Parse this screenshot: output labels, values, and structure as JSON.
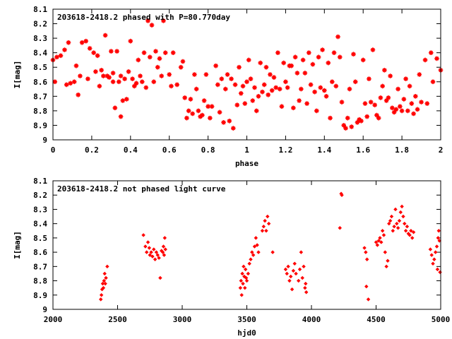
{
  "chart_data": [
    {
      "type": "scatter",
      "title": "203618-2418.2 phased with P=80.770day",
      "xlabel": "phase",
      "ylabel": "I[mag]",
      "xlim": [
        0,
        2
      ],
      "ylim": [
        9,
        8.1
      ],
      "y_inverted": true,
      "marker": "star",
      "marker_color": "#ff0000",
      "x_ticks": [
        "0",
        "0.2",
        "0.4",
        "0.6",
        "0.8",
        "1",
        "1.2",
        "1.4",
        "1.6",
        "1.8",
        "2"
      ],
      "y_ticks": [
        "8.1",
        "8.2",
        "8.3",
        "8.4",
        "8.5",
        "8.6",
        "8.7",
        "8.8",
        "8.9",
        "9"
      ],
      "points": [
        [
          0.0,
          8.45
        ],
        [
          0.01,
          8.6
        ],
        [
          0.02,
          8.43
        ],
        [
          0.04,
          8.42
        ],
        [
          0.06,
          8.38
        ],
        [
          0.07,
          8.62
        ],
        [
          0.08,
          8.33
        ],
        [
          0.09,
          8.61
        ],
        [
          0.11,
          8.6
        ],
        [
          0.12,
          8.49
        ],
        [
          0.13,
          8.69
        ],
        [
          0.14,
          8.56
        ],
        [
          0.15,
          8.33
        ],
        [
          0.17,
          8.32
        ],
        [
          0.18,
          8.58
        ],
        [
          0.19,
          8.37
        ],
        [
          0.21,
          8.4
        ],
        [
          0.22,
          8.53
        ],
        [
          0.23,
          8.42
        ],
        [
          0.24,
          8.63
        ],
        [
          0.25,
          8.52
        ],
        [
          0.26,
          8.56
        ],
        [
          0.27,
          8.28
        ],
        [
          0.28,
          8.56
        ],
        [
          0.29,
          8.57
        ],
        [
          0.3,
          8.39
        ],
        [
          0.31,
          8.54
        ],
        [
          0.31,
          8.6
        ],
        [
          0.32,
          8.78
        ],
        [
          0.33,
          8.39
        ],
        [
          0.34,
          8.6
        ],
        [
          0.35,
          8.84
        ],
        [
          0.35,
          8.56
        ],
        [
          0.36,
          8.73
        ],
        [
          0.37,
          8.58
        ],
        [
          0.38,
          8.72
        ],
        [
          0.39,
          8.53
        ],
        [
          0.4,
          8.32
        ],
        [
          0.41,
          8.58
        ],
        [
          0.42,
          8.63
        ],
        [
          0.43,
          8.61
        ],
        [
          0.44,
          8.45
        ],
        [
          0.45,
          8.56
        ],
        [
          0.46,
          8.6
        ],
        [
          0.47,
          8.4
        ],
        [
          0.48,
          8.64
        ],
        [
          0.49,
          8.18
        ],
        [
          0.5,
          8.43
        ],
        [
          0.51,
          8.21
        ],
        [
          0.52,
          8.6
        ],
        [
          0.53,
          8.39
        ],
        [
          0.54,
          8.5
        ],
        [
          0.55,
          8.44
        ],
        [
          0.56,
          8.56
        ],
        [
          0.57,
          8.18
        ],
        [
          0.58,
          8.4
        ],
        [
          0.6,
          8.55
        ],
        [
          0.61,
          8.63
        ],
        [
          0.62,
          8.4
        ],
        [
          0.64,
          8.62
        ],
        [
          0.66,
          8.5
        ],
        [
          0.67,
          8.46
        ],
        [
          0.68,
          8.71
        ],
        [
          0.69,
          8.85
        ],
        [
          0.7,
          8.8
        ],
        [
          0.71,
          8.72
        ],
        [
          0.72,
          8.82
        ],
        [
          0.73,
          8.55
        ],
        [
          0.74,
          8.65
        ],
        [
          0.75,
          8.8
        ],
        [
          0.76,
          8.84
        ],
        [
          0.77,
          8.83
        ],
        [
          0.78,
          8.73
        ],
        [
          0.79,
          8.55
        ],
        [
          0.8,
          8.77
        ],
        [
          0.81,
          8.85
        ],
        [
          0.82,
          8.77
        ],
        [
          0.84,
          8.49
        ],
        [
          0.85,
          8.62
        ],
        [
          0.86,
          8.81
        ],
        [
          0.87,
          8.58
        ],
        [
          0.88,
          8.88
        ],
        [
          0.89,
          8.65
        ],
        [
          0.9,
          8.55
        ],
        [
          0.91,
          8.87
        ],
        [
          0.92,
          8.58
        ],
        [
          0.93,
          8.92
        ],
        [
          0.94,
          8.62
        ],
        [
          0.95,
          8.76
        ],
        [
          0.96,
          8.5
        ],
        [
          0.97,
          8.68
        ],
        [
          0.98,
          8.63
        ],
        [
          0.99,
          8.75
        ],
        [
          1.0,
          8.6
        ],
        [
          1.01,
          8.45
        ],
        [
          1.02,
          8.58
        ],
        [
          1.03,
          8.73
        ],
        [
          1.04,
          8.64
        ],
        [
          1.05,
          8.8
        ],
        [
          1.06,
          8.7
        ],
        [
          1.07,
          8.47
        ],
        [
          1.08,
          8.67
        ],
        [
          1.09,
          8.62
        ],
        [
          1.1,
          8.5
        ],
        [
          1.11,
          8.69
        ],
        [
          1.12,
          8.55
        ],
        [
          1.13,
          8.66
        ],
        [
          1.14,
          8.57
        ],
        [
          1.15,
          8.64
        ],
        [
          1.16,
          8.4
        ],
        [
          1.17,
          8.65
        ],
        [
          1.18,
          8.77
        ],
        [
          1.19,
          8.47
        ],
        [
          1.2,
          8.6
        ],
        [
          1.21,
          8.64
        ],
        [
          1.22,
          8.49
        ],
        [
          1.23,
          8.49
        ],
        [
          1.24,
          8.78
        ],
        [
          1.25,
          8.43
        ],
        [
          1.26,
          8.54
        ],
        [
          1.27,
          8.73
        ],
        [
          1.28,
          8.65
        ],
        [
          1.29,
          8.45
        ],
        [
          1.3,
          8.54
        ],
        [
          1.31,
          8.75
        ],
        [
          1.32,
          8.4
        ],
        [
          1.33,
          8.62
        ],
        [
          1.34,
          8.48
        ],
        [
          1.35,
          8.67
        ],
        [
          1.36,
          8.8
        ],
        [
          1.37,
          8.43
        ],
        [
          1.38,
          8.64
        ],
        [
          1.39,
          8.38
        ],
        [
          1.4,
          8.66
        ],
        [
          1.41,
          8.7
        ],
        [
          1.42,
          8.47
        ],
        [
          1.43,
          8.85
        ],
        [
          1.44,
          8.6
        ],
        [
          1.45,
          8.4
        ],
        [
          1.46,
          8.63
        ],
        [
          1.47,
          8.29
        ],
        [
          1.48,
          8.43
        ],
        [
          1.49,
          8.74
        ],
        [
          1.5,
          8.9
        ],
        [
          1.51,
          8.92
        ],
        [
          1.52,
          8.85
        ],
        [
          1.53,
          8.65
        ],
        [
          1.54,
          8.91
        ],
        [
          1.55,
          8.41
        ],
        [
          1.56,
          8.6
        ],
        [
          1.57,
          8.88
        ],
        [
          1.58,
          8.86
        ],
        [
          1.59,
          8.87
        ],
        [
          1.6,
          8.45
        ],
        [
          1.61,
          8.75
        ],
        [
          1.62,
          8.84
        ],
        [
          1.63,
          8.58
        ],
        [
          1.64,
          8.74
        ],
        [
          1.65,
          8.38
        ],
        [
          1.66,
          8.76
        ],
        [
          1.67,
          8.83
        ],
        [
          1.68,
          8.85
        ],
        [
          1.69,
          8.71
        ],
        [
          1.7,
          8.63
        ],
        [
          1.71,
          8.52
        ],
        [
          1.72,
          8.73
        ],
        [
          1.73,
          8.71
        ],
        [
          1.74,
          8.56
        ],
        [
          1.75,
          8.78
        ],
        [
          1.76,
          8.81
        ],
        [
          1.77,
          8.79
        ],
        [
          1.78,
          8.65
        ],
        [
          1.79,
          8.77
        ],
        [
          1.8,
          8.8
        ],
        [
          1.81,
          8.72
        ],
        [
          1.82,
          8.58
        ],
        [
          1.83,
          8.8
        ],
        [
          1.84,
          8.63
        ],
        [
          1.85,
          8.75
        ],
        [
          1.86,
          8.82
        ],
        [
          1.87,
          8.7
        ],
        [
          1.88,
          8.79
        ],
        [
          1.89,
          8.55
        ],
        [
          1.9,
          8.74
        ],
        [
          1.92,
          8.45
        ],
        [
          1.93,
          8.75
        ],
        [
          1.95,
          8.4
        ],
        [
          1.96,
          8.6
        ],
        [
          1.98,
          8.44
        ],
        [
          2.0,
          8.52
        ]
      ]
    },
    {
      "type": "scatter",
      "title": "203618-2418.2 not phased light curve",
      "xlabel": "hjd0",
      "ylabel": "I[mag]",
      "xlim": [
        2000,
        5000
      ],
      "ylim": [
        9,
        8.1
      ],
      "y_inverted": true,
      "marker": "diamond",
      "marker_color": "#ff0000",
      "x_ticks": [
        "2000",
        "2500",
        "3000",
        "3500",
        "4000",
        "4500",
        "5000"
      ],
      "y_ticks": [
        "8.1",
        "8.2",
        "8.3",
        "8.4",
        "8.5",
        "8.6",
        "8.7",
        "8.8",
        "8.9",
        "9"
      ],
      "points": [
        [
          2370,
          8.93
        ],
        [
          2375,
          8.9
        ],
        [
          2380,
          8.86
        ],
        [
          2385,
          8.82
        ],
        [
          2390,
          8.85
        ],
        [
          2395,
          8.8
        ],
        [
          2400,
          8.75
        ],
        [
          2405,
          8.82
        ],
        [
          2410,
          8.78
        ],
        [
          2420,
          8.7
        ],
        [
          2700,
          8.48
        ],
        [
          2715,
          8.56
        ],
        [
          2725,
          8.6
        ],
        [
          2735,
          8.53
        ],
        [
          2745,
          8.57
        ],
        [
          2750,
          8.62
        ],
        [
          2760,
          8.6
        ],
        [
          2770,
          8.63
        ],
        [
          2780,
          8.58
        ],
        [
          2790,
          8.65
        ],
        [
          2800,
          8.6
        ],
        [
          2810,
          8.62
        ],
        [
          2820,
          8.64
        ],
        [
          2830,
          8.78
        ],
        [
          2840,
          8.59
        ],
        [
          2850,
          8.6
        ],
        [
          2855,
          8.56
        ],
        [
          2860,
          8.62
        ],
        [
          2865,
          8.5
        ],
        [
          2870,
          8.58
        ],
        [
          3450,
          8.85
        ],
        [
          3455,
          8.8
        ],
        [
          3460,
          8.9
        ],
        [
          3465,
          8.75
        ],
        [
          3470,
          8.82
        ],
        [
          3475,
          8.7
        ],
        [
          3480,
          8.77
        ],
        [
          3485,
          8.85
        ],
        [
          3490,
          8.72
        ],
        [
          3495,
          8.78
        ],
        [
          3500,
          8.8
        ],
        [
          3510,
          8.75
        ],
        [
          3520,
          8.68
        ],
        [
          3530,
          8.65
        ],
        [
          3540,
          8.6
        ],
        [
          3550,
          8.62
        ],
        [
          3560,
          8.56
        ],
        [
          3570,
          8.5
        ],
        [
          3580,
          8.55
        ],
        [
          3590,
          8.6
        ],
        [
          3620,
          8.45
        ],
        [
          3630,
          8.42
        ],
        [
          3640,
          8.38
        ],
        [
          3650,
          8.45
        ],
        [
          3660,
          8.35
        ],
        [
          3670,
          8.4
        ],
        [
          3700,
          8.6
        ],
        [
          3800,
          8.72
        ],
        [
          3810,
          8.75
        ],
        [
          3820,
          8.7
        ],
        [
          3830,
          8.8
        ],
        [
          3840,
          8.77
        ],
        [
          3850,
          8.86
        ],
        [
          3860,
          8.73
        ],
        [
          3870,
          8.68
        ],
        [
          3880,
          8.75
        ],
        [
          3900,
          8.8
        ],
        [
          3910,
          8.72
        ],
        [
          3920,
          8.6
        ],
        [
          3930,
          8.78
        ],
        [
          3940,
          8.7
        ],
        [
          3950,
          8.85
        ],
        [
          3955,
          8.82
        ],
        [
          3960,
          8.88
        ],
        [
          4220,
          8.43
        ],
        [
          4230,
          8.19
        ],
        [
          4235,
          8.2
        ],
        [
          4410,
          8.57
        ],
        [
          4420,
          8.6
        ],
        [
          4425,
          8.84
        ],
        [
          4430,
          8.65
        ],
        [
          4440,
          8.93
        ],
        [
          4500,
          8.53
        ],
        [
          4510,
          8.55
        ],
        [
          4520,
          8.52
        ],
        [
          4530,
          8.5
        ],
        [
          4540,
          8.53
        ],
        [
          4550,
          8.45
        ],
        [
          4560,
          8.48
        ],
        [
          4570,
          8.6
        ],
        [
          4580,
          8.7
        ],
        [
          4590,
          8.66
        ],
        [
          4600,
          8.4
        ],
        [
          4610,
          8.38
        ],
        [
          4620,
          8.35
        ],
        [
          4630,
          8.45
        ],
        [
          4640,
          8.42
        ],
        [
          4650,
          8.3
        ],
        [
          4660,
          8.4
        ],
        [
          4670,
          8.43
        ],
        [
          4680,
          8.38
        ],
        [
          4690,
          8.32
        ],
        [
          4700,
          8.28
        ],
        [
          4710,
          8.35
        ],
        [
          4720,
          8.4
        ],
        [
          4730,
          8.45
        ],
        [
          4740,
          8.42
        ],
        [
          4750,
          8.47
        ],
        [
          4760,
          8.48
        ],
        [
          4770,
          8.45
        ],
        [
          4780,
          8.5
        ],
        [
          4790,
          8.46
        ],
        [
          4920,
          8.58
        ],
        [
          4930,
          8.62
        ],
        [
          4940,
          8.68
        ],
        [
          4950,
          8.65
        ],
        [
          4960,
          8.6
        ],
        [
          4970,
          8.56
        ],
        [
          4975,
          8.72
        ],
        [
          4980,
          8.5
        ],
        [
          4985,
          8.45
        ],
        [
          4990,
          8.52
        ],
        [
          4995,
          8.74
        ]
      ]
    }
  ]
}
